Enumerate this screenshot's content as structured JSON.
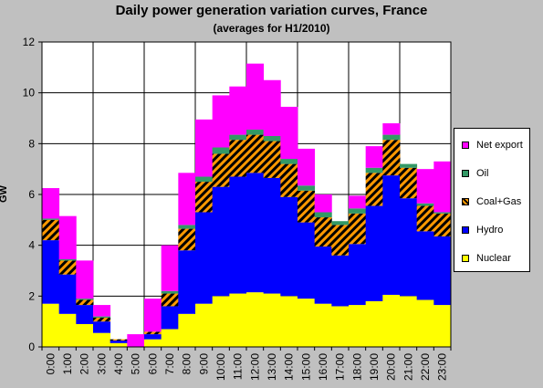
{
  "chart_data": {
    "type": "stacked_area",
    "title": "Daily power generation variation curves, France",
    "subtitle": "(averages for H1/2010)",
    "ylabel": "GW",
    "xlabel": "",
    "ylim": [
      0,
      12
    ],
    "yticks": [
      0,
      2,
      4,
      6,
      8,
      10,
      12
    ],
    "grid": true,
    "legend_position": "right",
    "categories": [
      "0:00",
      "1:00",
      "2:00",
      "3:00",
      "4:00",
      "5:00",
      "6:00",
      "7:00",
      "8:00",
      "9:00",
      "10:00",
      "11:00",
      "12:00",
      "13:00",
      "14:00",
      "15:00",
      "16:00",
      "17:00",
      "18:00",
      "19:00",
      "20:00",
      "21:00",
      "22:00",
      "23:00"
    ],
    "series": [
      {
        "name": "Nuclear",
        "color": "#ffff00",
        "values": [
          1.7,
          1.3,
          0.9,
          0.55,
          0.15,
          0.0,
          0.3,
          0.7,
          1.3,
          1.7,
          2.0,
          2.1,
          2.15,
          2.1,
          2.0,
          1.9,
          1.7,
          1.6,
          1.65,
          1.8,
          2.05,
          2.0,
          1.85,
          1.65
        ]
      },
      {
        "name": "Hydro",
        "color": "#0000ff",
        "values": [
          2.5,
          1.55,
          0.75,
          0.45,
          0.1,
          -0.1,
          0.2,
          0.9,
          2.5,
          3.6,
          4.3,
          4.6,
          4.7,
          4.55,
          3.9,
          3.0,
          2.25,
          2.0,
          2.4,
          3.75,
          4.7,
          3.85,
          2.7,
          2.7
        ]
      },
      {
        "name": "Coal+Gas",
        "color": "#ff9900",
        "values": [
          0.8,
          0.55,
          0.2,
          0.15,
          0.05,
          0.0,
          0.1,
          0.5,
          0.85,
          1.2,
          1.3,
          1.45,
          1.5,
          1.45,
          1.3,
          1.25,
          1.15,
          1.2,
          1.2,
          1.3,
          1.4,
          1.2,
          1.0,
          0.9
        ]
      },
      {
        "name": "Oil",
        "color": "#339966",
        "values": [
          0.05,
          0.05,
          0.05,
          0.05,
          0.0,
          0.0,
          0.0,
          0.1,
          0.15,
          0.2,
          0.25,
          0.2,
          0.2,
          0.2,
          0.2,
          0.2,
          0.2,
          0.15,
          0.2,
          0.2,
          0.2,
          0.15,
          0.1,
          0.05
        ]
      },
      {
        "name": "Net export",
        "color": "#ff00ff",
        "values": [
          1.2,
          1.7,
          1.5,
          0.45,
          0.0,
          0.6,
          1.3,
          1.8,
          2.05,
          2.25,
          2.05,
          1.9,
          2.6,
          2.2,
          2.05,
          1.45,
          0.7,
          0.0,
          0.5,
          0.85,
          0.45,
          0.0,
          1.35,
          2.0
        ]
      }
    ]
  }
}
